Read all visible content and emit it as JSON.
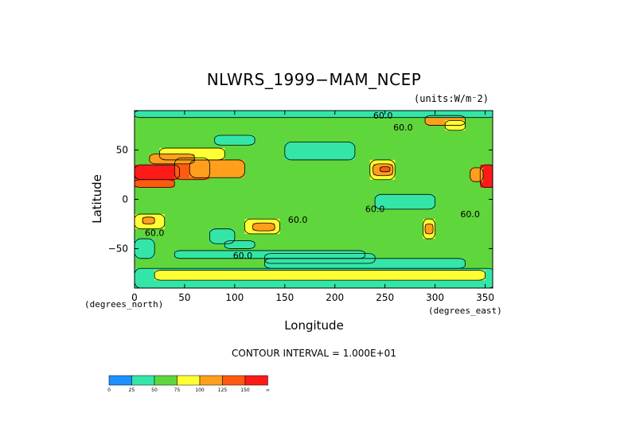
{
  "chart_data": {
    "type": "heatmap",
    "title": "NLWRS_1999−MAM_NCEP",
    "units": "(units:W/m⁻2)",
    "xlabel": "Longitude",
    "ylabel": "Latitude",
    "x_unit_note": "(degrees_east)",
    "y_unit_note": "(degrees_north)",
    "xlim": [
      0,
      357.5
    ],
    "ylim": [
      -90,
      90
    ],
    "x_ticks": [
      0,
      50,
      100,
      150,
      200,
      250,
      300,
      350
    ],
    "y_ticks": [
      50,
      0,
      -50
    ],
    "contour_interval": "CONTOUR INTERVAL = 1.000E+01",
    "contour_labels": [
      {
        "text": "60.0",
        "x": 248,
        "y": 82
      },
      {
        "text": "60.0",
        "x": 268,
        "y": 70
      },
      {
        "text": "60.0",
        "x": 240,
        "y": -13
      },
      {
        "text": "60.0",
        "x": 163,
        "y": -24
      },
      {
        "text": "60.0",
        "x": 20,
        "y": -37
      },
      {
        "text": "60.0",
        "x": 108,
        "y": -60
      },
      {
        "text": "60.0",
        "x": 335,
        "y": -18
      }
    ],
    "colorbar": {
      "levels": [
        "0",
        "25",
        "50",
        "75",
        "100",
        "125",
        "150",
        "∞"
      ],
      "colors": [
        "#1e90ff",
        "#33e6a8",
        "#5fd63c",
        "#ffff33",
        "#ff9f1c",
        "#ff5a10",
        "#ff1a1a"
      ]
    },
    "z_classes_note": "cell value = color class index (0:0-25, 1:25-50, 2:50-75, 3:75-100, 4:100-125, 5:125-150, 6:150+)",
    "regions": [
      {
        "lon": [
          0,
          360
        ],
        "lat": [
          -90,
          90
        ],
        "class": 2
      },
      {
        "lon": [
          0,
          360
        ],
        "lat": [
          -90,
          -70
        ],
        "class": 1
      },
      {
        "lon": [
          20,
          350
        ],
        "lat": [
          -82,
          -72
        ],
        "class": 3
      },
      {
        "lon": [
          130,
          330
        ],
        "lat": [
          -70,
          -60
        ],
        "class": 1
      },
      {
        "lon": [
          40,
          230
        ],
        "lat": [
          -60,
          -52
        ],
        "class": 1
      },
      {
        "lon": [
          0,
          20
        ],
        "lat": [
          -60,
          -40
        ],
        "class": 1
      },
      {
        "lon": [
          90,
          120
        ],
        "lat": [
          -50,
          -42
        ],
        "class": 1
      },
      {
        "lon": [
          0,
          45
        ],
        "lat": [
          20,
          35
        ],
        "class": 6
      },
      {
        "lon": [
          0,
          40
        ],
        "lat": [
          12,
          20
        ],
        "class": 5
      },
      {
        "lon": [
          40,
          75
        ],
        "lat": [
          20,
          42
        ],
        "class": 5
      },
      {
        "lon": [
          55,
          110
        ],
        "lat": [
          22,
          40
        ],
        "class": 4
      },
      {
        "lon": [
          25,
          90
        ],
        "lat": [
          40,
          52
        ],
        "class": 3
      },
      {
        "lon": [
          15,
          60
        ],
        "lat": [
          36,
          46
        ],
        "class": 4
      },
      {
        "lon": [
          75,
          100
        ],
        "lat": [
          -45,
          -30
        ],
        "class": 1
      },
      {
        "lon": [
          110,
          145
        ],
        "lat": [
          -35,
          -20
        ],
        "class": 3
      },
      {
        "lon": [
          118,
          140
        ],
        "lat": [
          -32,
          -24
        ],
        "class": 4
      },
      {
        "lon": [
          0,
          30
        ],
        "lat": [
          -30,
          -15
        ],
        "class": 3
      },
      {
        "lon": [
          8,
          20
        ],
        "lat": [
          -25,
          -18
        ],
        "class": 4
      },
      {
        "lon": [
          235,
          260
        ],
        "lat": [
          20,
          40
        ],
        "class": 3
      },
      {
        "lon": [
          238,
          258
        ],
        "lat": [
          24,
          36
        ],
        "class": 4
      },
      {
        "lon": [
          245,
          255
        ],
        "lat": [
          28,
          33
        ],
        "class": 5
      },
      {
        "lon": [
          288,
          300
        ],
        "lat": [
          -40,
          -20
        ],
        "class": 3
      },
      {
        "lon": [
          290,
          298
        ],
        "lat": [
          -35,
          -25
        ],
        "class": 4
      },
      {
        "lon": [
          345,
          360
        ],
        "lat": [
          12,
          35
        ],
        "class": 6
      },
      {
        "lon": [
          335,
          348
        ],
        "lat": [
          18,
          32
        ],
        "class": 4
      },
      {
        "lon": [
          150,
          220
        ],
        "lat": [
          40,
          58
        ],
        "class": 1
      },
      {
        "lon": [
          80,
          120
        ],
        "lat": [
          55,
          65
        ],
        "class": 1
      },
      {
        "lon": [
          240,
          300
        ],
        "lat": [
          -10,
          5
        ],
        "class": 1
      },
      {
        "lon": [
          130,
          240
        ],
        "lat": [
          -65,
          -55
        ],
        "class": 1
      },
      {
        "lon": [
          290,
          330
        ],
        "lat": [
          75,
          85
        ],
        "class": 4
      },
      {
        "lon": [
          310,
          330
        ],
        "lat": [
          70,
          80
        ],
        "class": 3
      },
      {
        "lon": [
          0,
          360
        ],
        "lat": [
          83,
          90
        ],
        "class": 1
      }
    ]
  }
}
